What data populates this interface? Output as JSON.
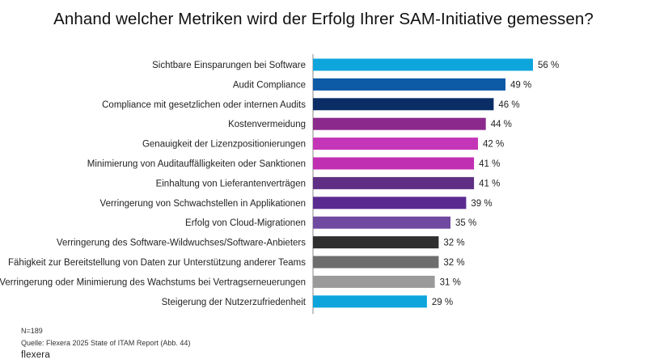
{
  "chart_data": {
    "type": "bar",
    "orientation": "horizontal",
    "title": "Anhand welcher Metriken wird der Erfolg Ihrer SAM-Initiative gemessen?",
    "xlabel": "",
    "ylabel": "",
    "xlim": [
      0,
      100
    ],
    "value_suffix": " %",
    "categories": [
      "Sichtbare Einsparungen bei Software",
      "Audit Compliance",
      "Compliance mit gesetzlichen oder internen Audits",
      "Kostenvermeidung",
      "Genauigkeit der Lizenzpositionierungen",
      "Minimierung von Auditauffälligkeiten oder Sanktionen",
      "Einhaltung von Lieferantenverträgen",
      "Verringerung von Schwachstellen in Applikationen",
      "Erfolg von Cloud-Migrationen",
      "Verringerung des Software-Wildwuchses/Software-Anbieters",
      "Fähigkeit zur Bereitstellung von Daten zur Unterstützung anderer Teams",
      "Verringerung oder Minimierung des Wachstums bei Vertragserneuerungen",
      "Steigerung der Nutzerzufriedenheit"
    ],
    "values": [
      56,
      49,
      46,
      44,
      42,
      41,
      41,
      39,
      35,
      32,
      32,
      31,
      29
    ],
    "colors": [
      "#0ea5dc",
      "#0d5aa7",
      "#0b2d66",
      "#8b2a8c",
      "#c435b7",
      "#c02fb2",
      "#5e2f84",
      "#5a2a91",
      "#6f4aa0",
      "#2f2f2f",
      "#6e6e6e",
      "#9a9a9a",
      "#0ea5dc"
    ],
    "grid": false
  },
  "footer": {
    "n": "N=189",
    "source": "Quelle: Flexera 2025 State of ITAM Report (Abb. 44)",
    "logo": "flexera"
  }
}
